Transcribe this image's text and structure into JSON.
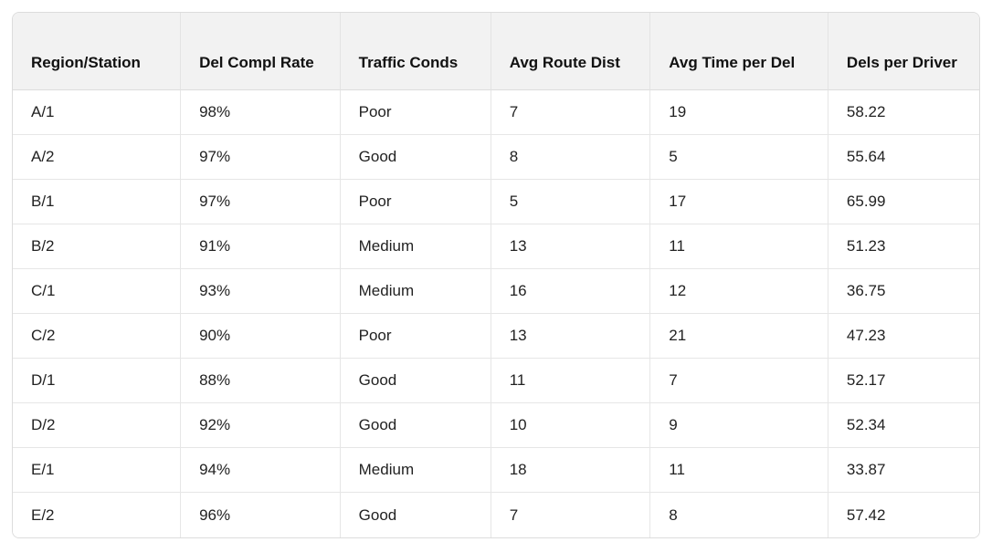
{
  "colors": {
    "header_background": "#f2f2f2",
    "border": "#dcdcdc",
    "row_divider": "#e6e6e6",
    "text": "#1a1a1a",
    "background": "#ffffff"
  },
  "table": {
    "columns": [
      "Region/Station",
      "Del Compl Rate",
      "Traffic Conds",
      "Avg Route Dist",
      "Avg Time per Del",
      "Dels per Driver"
    ],
    "rows": [
      [
        "A/1",
        "98%",
        "Poor",
        "7",
        "19",
        "58.22"
      ],
      [
        "A/2",
        "97%",
        "Good",
        "8",
        "5",
        "55.64"
      ],
      [
        "B/1",
        "97%",
        "Poor",
        "5",
        "17",
        "65.99"
      ],
      [
        "B/2",
        "91%",
        "Medium",
        "13",
        "11",
        "51.23"
      ],
      [
        "C/1",
        "93%",
        "Medium",
        "16",
        "12",
        "36.75"
      ],
      [
        "C/2",
        "90%",
        "Poor",
        "13",
        "21",
        "47.23"
      ],
      [
        "D/1",
        "88%",
        "Good",
        "11",
        "7",
        "52.17"
      ],
      [
        "D/2",
        "92%",
        "Good",
        "10",
        "9",
        "52.34"
      ],
      [
        "E/1",
        "94%",
        "Medium",
        "18",
        "11",
        "33.87"
      ],
      [
        "E/2",
        "96%",
        "Good",
        "7",
        "8",
        "57.42"
      ]
    ]
  },
  "chart_data": {
    "type": "table",
    "title": "",
    "columns": [
      "Region/Station",
      "Del Compl Rate",
      "Traffic Conds",
      "Avg Route Dist",
      "Avg Time per Del",
      "Dels per Driver"
    ],
    "rows": [
      {
        "region_station": "A/1",
        "del_compl_rate_pct": 98,
        "traffic_conds": "Poor",
        "avg_route_dist": 7,
        "avg_time_per_del": 19,
        "dels_per_driver": 58.22
      },
      {
        "region_station": "A/2",
        "del_compl_rate_pct": 97,
        "traffic_conds": "Good",
        "avg_route_dist": 8,
        "avg_time_per_del": 5,
        "dels_per_driver": 55.64
      },
      {
        "region_station": "B/1",
        "del_compl_rate_pct": 97,
        "traffic_conds": "Poor",
        "avg_route_dist": 5,
        "avg_time_per_del": 17,
        "dels_per_driver": 65.99
      },
      {
        "region_station": "B/2",
        "del_compl_rate_pct": 91,
        "traffic_conds": "Medium",
        "avg_route_dist": 13,
        "avg_time_per_del": 11,
        "dels_per_driver": 51.23
      },
      {
        "region_station": "C/1",
        "del_compl_rate_pct": 93,
        "traffic_conds": "Medium",
        "avg_route_dist": 16,
        "avg_time_per_del": 12,
        "dels_per_driver": 36.75
      },
      {
        "region_station": "C/2",
        "del_compl_rate_pct": 90,
        "traffic_conds": "Poor",
        "avg_route_dist": 13,
        "avg_time_per_del": 21,
        "dels_per_driver": 47.23
      },
      {
        "region_station": "D/1",
        "del_compl_rate_pct": 88,
        "traffic_conds": "Good",
        "avg_route_dist": 11,
        "avg_time_per_del": 7,
        "dels_per_driver": 52.17
      },
      {
        "region_station": "D/2",
        "del_compl_rate_pct": 92,
        "traffic_conds": "Good",
        "avg_route_dist": 10,
        "avg_time_per_del": 9,
        "dels_per_driver": 52.34
      },
      {
        "region_station": "E/1",
        "del_compl_rate_pct": 94,
        "traffic_conds": "Medium",
        "avg_route_dist": 18,
        "avg_time_per_del": 11,
        "dels_per_driver": 33.87
      },
      {
        "region_station": "E/2",
        "del_compl_rate_pct": 96,
        "traffic_conds": "Good",
        "avg_route_dist": 7,
        "avg_time_per_del": 8,
        "dels_per_driver": 57.42
      }
    ]
  }
}
